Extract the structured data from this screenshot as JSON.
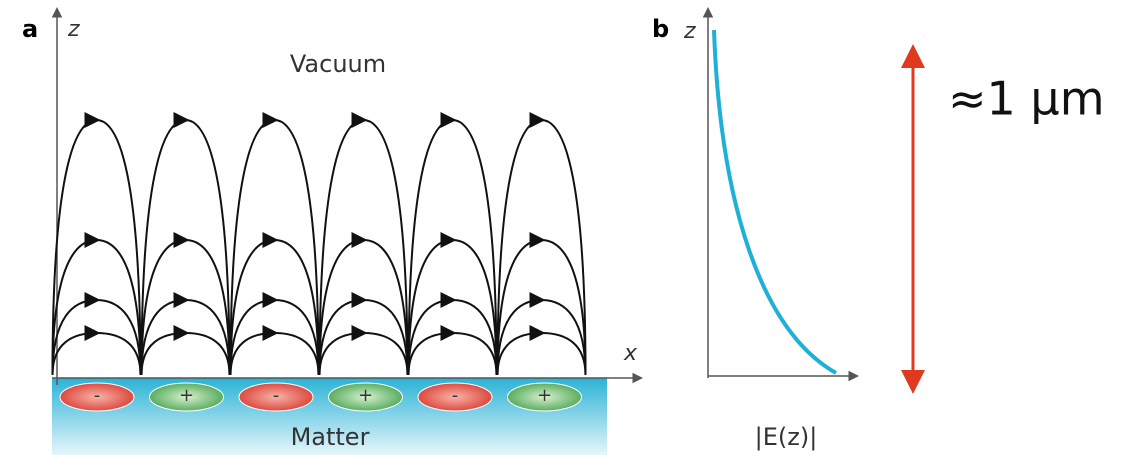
{
  "panel_a": {
    "label": "a",
    "z_axis": "z",
    "x_axis": "x",
    "top_region": "Vacuum",
    "bottom_region": "Matter",
    "charges": [
      "-",
      "+",
      "-",
      "+",
      "-",
      "+"
    ]
  },
  "panel_b": {
    "label": "b",
    "z_axis": "z",
    "x_axis": "|E(z)|"
  },
  "scale_label": "≈1 μm"
}
